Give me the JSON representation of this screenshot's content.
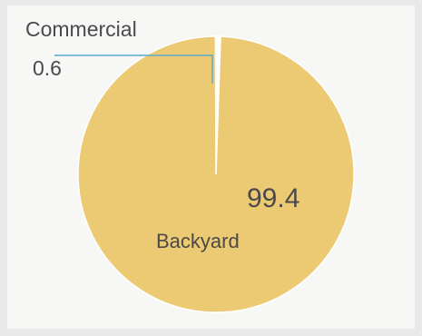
{
  "chart_data": {
    "type": "pie",
    "title": "",
    "slices": [
      {
        "label": "Backyard",
        "value": 99.4,
        "value_text": "99.4",
        "color": "#ecca73"
      },
      {
        "label": "Commercial",
        "value": 0.6,
        "value_text": "0.6",
        "color": "#ffffff"
      }
    ],
    "leader_line_color": "#5aa9cf",
    "start_angle": "12 o'clock",
    "direction": "clockwise"
  }
}
